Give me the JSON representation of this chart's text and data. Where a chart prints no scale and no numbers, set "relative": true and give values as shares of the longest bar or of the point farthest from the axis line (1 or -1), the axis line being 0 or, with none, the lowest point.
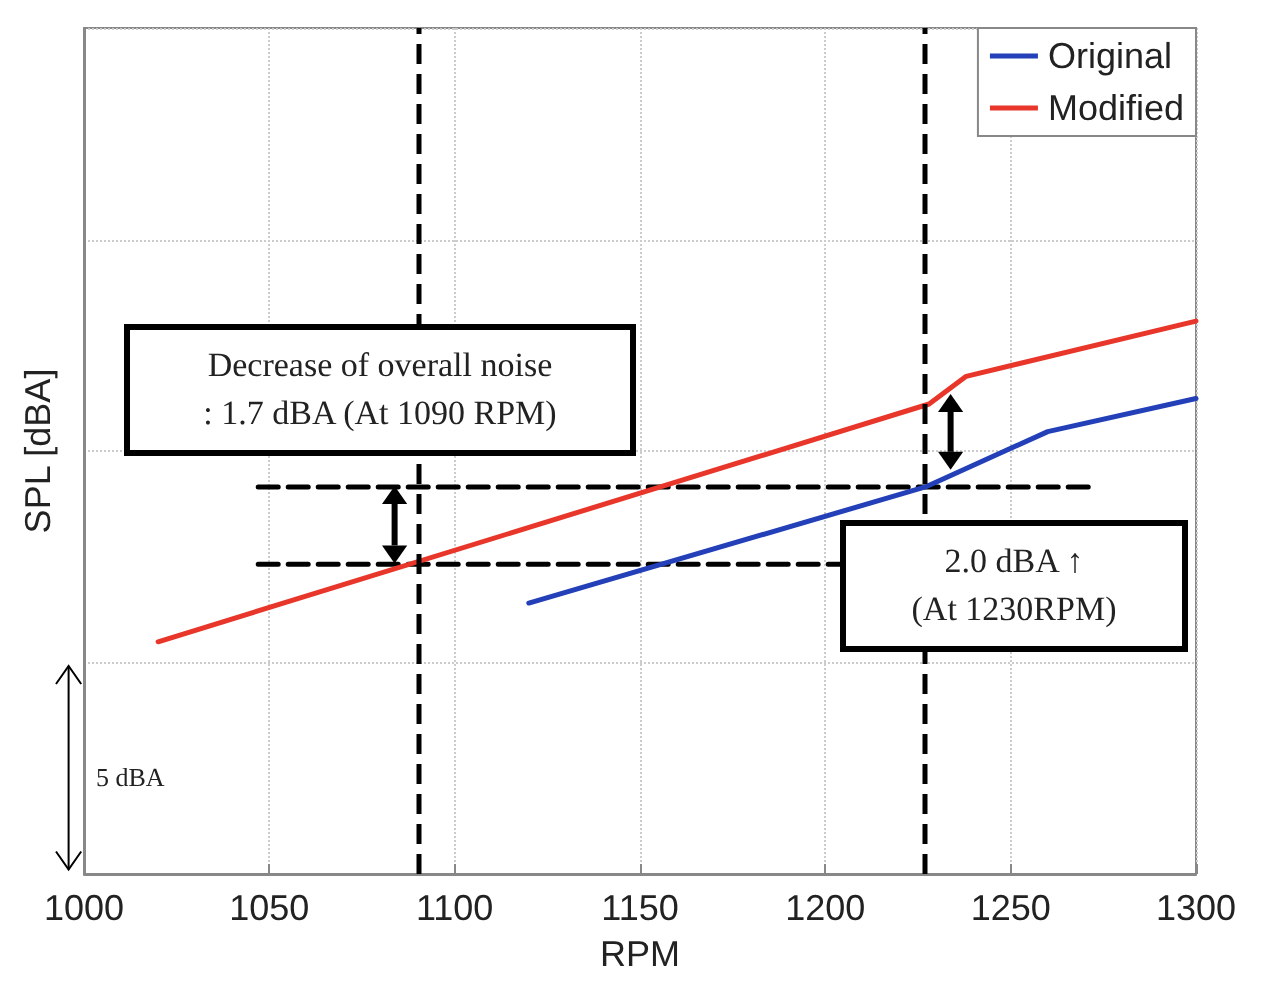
{
  "chart_data": {
    "type": "line",
    "xlabel": "RPM",
    "ylabel": "SPL [dBA]",
    "relative": true,
    "xlim": [
      1000,
      1300
    ],
    "xticks": [
      1000,
      1050,
      1100,
      1150,
      1200,
      1250,
      1300
    ],
    "grid": true,
    "legend": "top right",
    "marker": "none",
    "line_style": "solid",
    "series": [
      {
        "name": "Original",
        "color": "#2340b8",
        "x": [
          1120,
          1227,
          1260,
          1300
        ],
        "values": [
          0.49,
          0.7,
          0.8,
          0.86
        ]
      },
      {
        "name": "Modified",
        "color": "#e8372a",
        "x": [
          1020,
          1228,
          1238,
          1300
        ],
        "values": [
          0.42,
          0.85,
          0.9,
          1.0
        ]
      },
      {
        "color": "#000000",
        "line_style": "dashed",
        "x": [
          1047,
          1271
        ],
        "values": [
          0.7,
          0.7
        ]
      },
      {
        "color": "#000000",
        "line_style": "dashed",
        "x": [
          1047,
          1204
        ],
        "values": [
          0.56,
          0.56
        ]
      }
    ],
    "ref_lines": [
      {
        "axis": "x",
        "value": 1090,
        "color": "#000000",
        "line_style": "dashed"
      },
      {
        "axis": "x",
        "value": 1227,
        "color": "#000000",
        "line_style": "dashed"
      }
    ],
    "annotations": [
      "Decrease of overall noise\n: 1.7 dBA (At 1090 RPM)",
      "2.0 dBA ↑\n(At 1230RPM)",
      "5 dBA"
    ]
  }
}
